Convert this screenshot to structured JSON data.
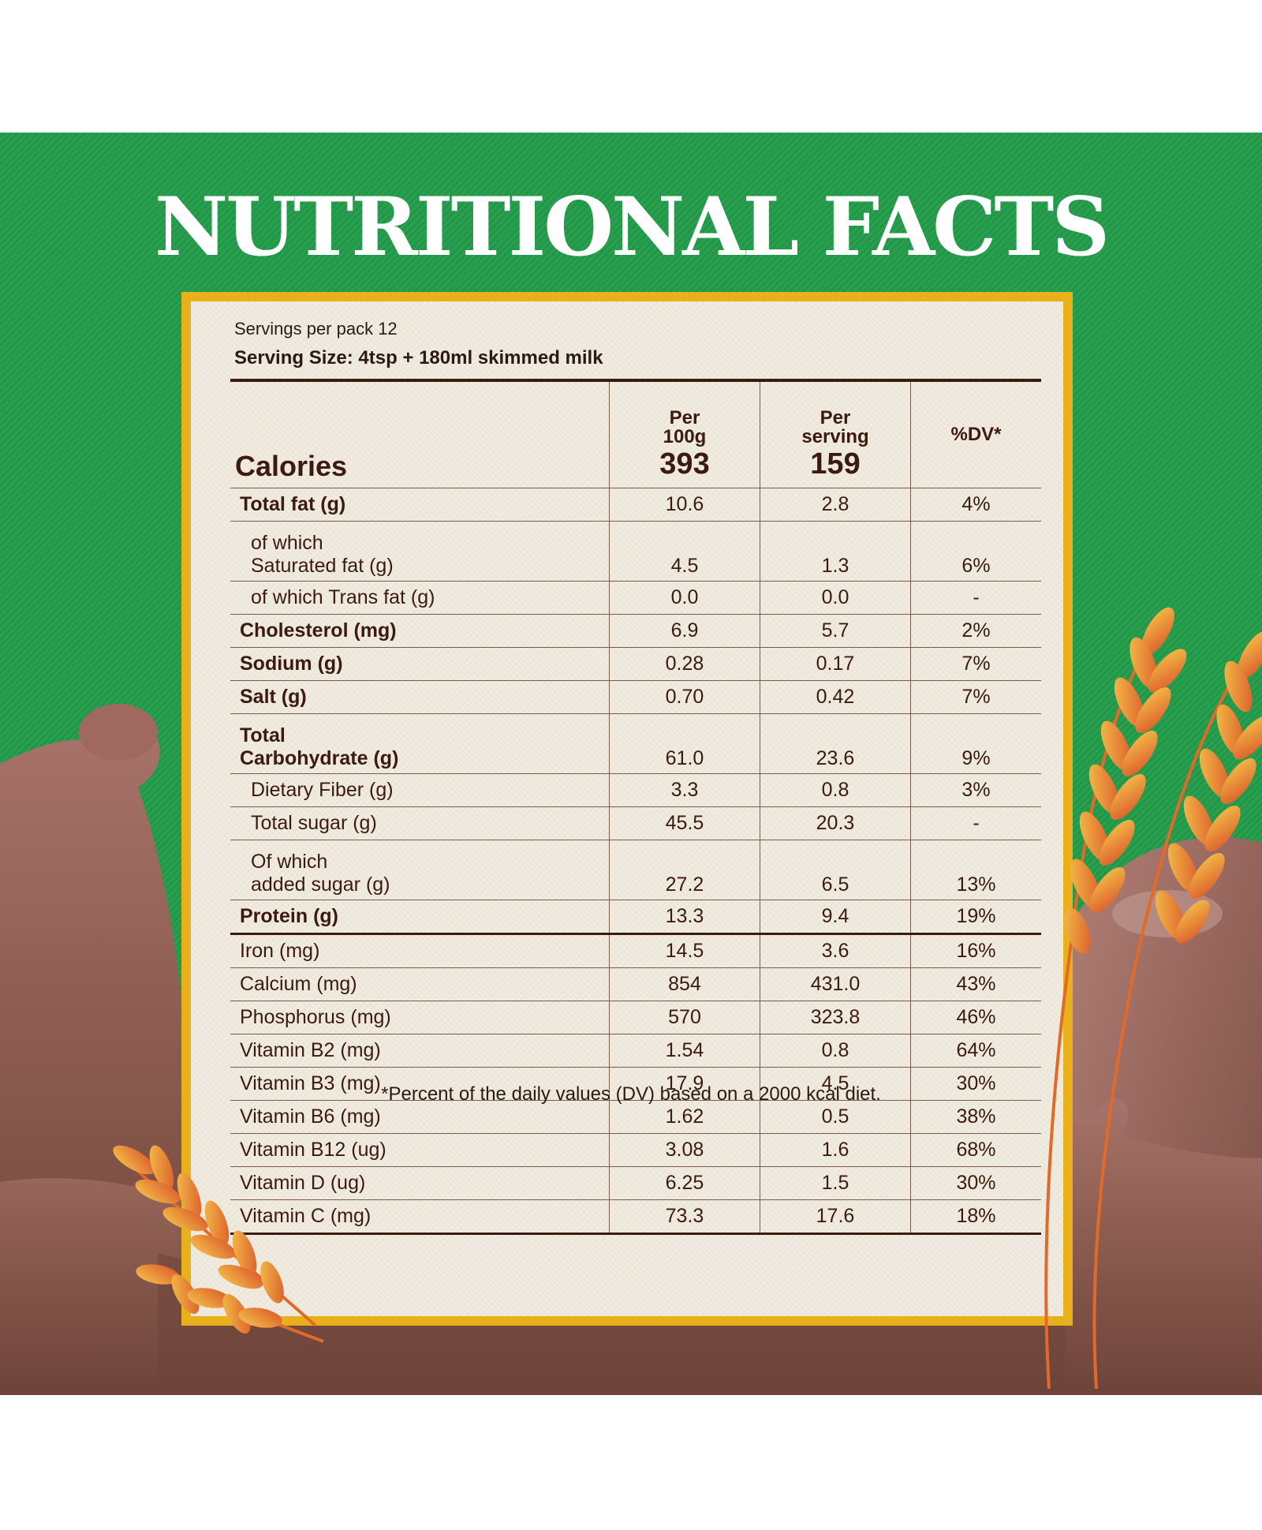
{
  "title": "NUTRITIONAL FACTS",
  "servings_per_pack": "Servings per pack 12",
  "serving_size": "Serving Size: 4tsp + 180ml skimmed milk",
  "header": {
    "calories_label": "Calories",
    "col1_label_line1": "Per",
    "col1_label_line2": "100g",
    "col1_value": "393",
    "col2_label_line1": "Per",
    "col2_label_line2": "serving",
    "col2_value": "159",
    "col3_label": "%DV*"
  },
  "rows": [
    {
      "name": "Total fat (g)",
      "per100": "10.6",
      "serving": "2.8",
      "dv": "4%"
    },
    {
      "name_line1": "of which",
      "name_line2": "Saturated fat (g)",
      "per100": "4.5",
      "serving": "1.3",
      "dv": "6%"
    },
    {
      "name": "of which Trans fat (g)",
      "per100": "0.0",
      "serving": "0.0",
      "dv": "-"
    },
    {
      "name": "Cholesterol (mg)",
      "per100": "6.9",
      "serving": "5.7",
      "dv": "2%"
    },
    {
      "name": "Sodium (g)",
      "per100": "0.28",
      "serving": "0.17",
      "dv": "7%"
    },
    {
      "name": "Salt (g)",
      "per100": "0.70",
      "serving": "0.42",
      "dv": "7%"
    },
    {
      "name_line1": "Total",
      "name_line2": "Carbohydrate (g)",
      "per100": "61.0",
      "serving": "23.6",
      "dv": "9%"
    },
    {
      "name": "Dietary Fiber (g)",
      "per100": "3.3",
      "serving": "0.8",
      "dv": "3%"
    },
    {
      "name": "Total sugar (g)",
      "per100": "45.5",
      "serving": "20.3",
      "dv": "-"
    },
    {
      "name_line1": "Of which",
      "name_line2": "added sugar (g)",
      "per100": "27.2",
      "serving": "6.5",
      "dv": "13%"
    },
    {
      "name": "Protein (g)",
      "per100": "13.3",
      "serving": "9.4",
      "dv": "19%"
    },
    {
      "name": "Iron (mg)",
      "per100": "14.5",
      "serving": "3.6",
      "dv": "16%"
    },
    {
      "name": "Calcium (mg)",
      "per100": "854",
      "serving": "431.0",
      "dv": "43%"
    },
    {
      "name": "Phosphorus (mg)",
      "per100": "570",
      "serving": "323.8",
      "dv": "46%"
    },
    {
      "name": "Vitamin B2 (mg)",
      "per100": "1.54",
      "serving": "0.8",
      "dv": "64%"
    },
    {
      "name": "Vitamin B3 (mg)",
      "per100": "17.9",
      "serving": "4.5",
      "dv": "30%"
    },
    {
      "name": "Vitamin B6 (mg)",
      "per100": "1.62",
      "serving": "0.5",
      "dv": "38%"
    },
    {
      "name": "Vitamin B12 (ug)",
      "per100": "3.08",
      "serving": "1.6",
      "dv": "68%"
    },
    {
      "name": "Vitamin D (ug)",
      "per100": "6.25",
      "serving": "1.5",
      "dv": "30%"
    },
    {
      "name": "Vitamin C (mg)",
      "per100": "73.3",
      "serving": "17.6",
      "dv": "18%"
    }
  ],
  "footnote": "*Percent of the daily values (DV) based on a 2000 kcal diet.",
  "colors": {
    "green": "#239c4a",
    "gold": "#e8b11c",
    "cream": "#f1ece2",
    "brown_text": "#3b1a0f",
    "chocolate": "#8a5a4e"
  },
  "icons": [
    "wheat-stalk-icon",
    "chocolate-splash-icon"
  ]
}
